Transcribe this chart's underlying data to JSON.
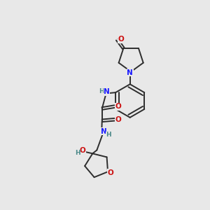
{
  "background_color": "#e8e8e8",
  "bond_color": "#2d2d2d",
  "atom_colors": {
    "N": "#1a1aff",
    "O": "#cc1111",
    "H": "#4a8888",
    "C": "#2d2d2d"
  },
  "figsize": [
    3.0,
    3.0
  ],
  "dpi": 100
}
